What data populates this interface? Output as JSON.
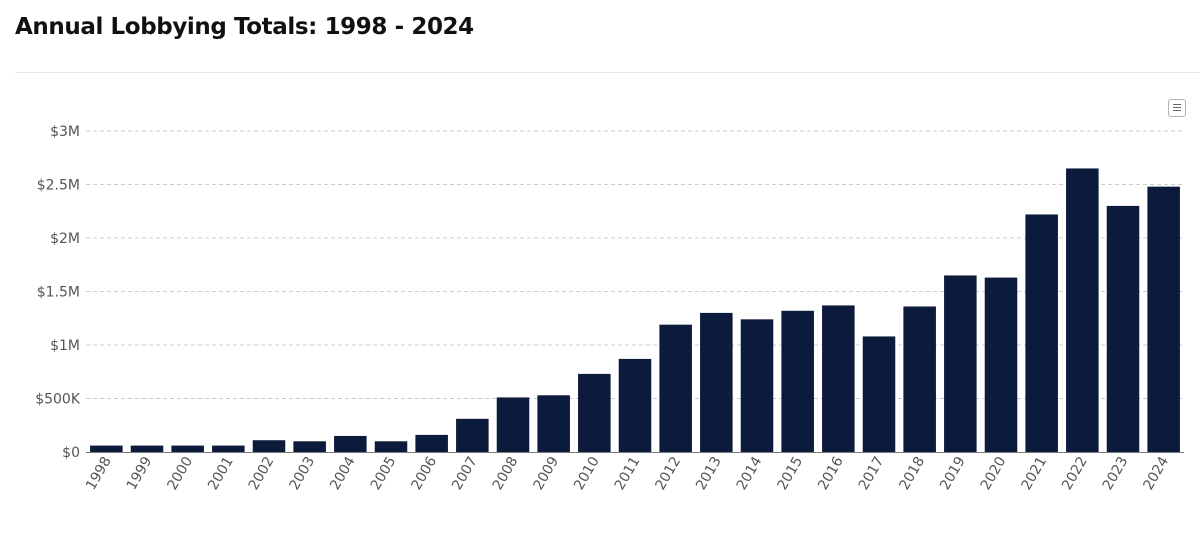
{
  "page": {
    "title": "Annual Lobbying Totals: 1998 - 2024"
  },
  "colors": {
    "bar": "#0c1a3b",
    "grid": "#cccccc",
    "axis": "#777777"
  },
  "chart_data": {
    "type": "bar",
    "title": "Annual Lobbying Totals: 1998 - 2024",
    "xlabel": "",
    "ylabel": "",
    "categories": [
      "1998",
      "1999",
      "2000",
      "2001",
      "2002",
      "2003",
      "2004",
      "2005",
      "2006",
      "2007",
      "2008",
      "2009",
      "2010",
      "2011",
      "2012",
      "2013",
      "2014",
      "2015",
      "2016",
      "2017",
      "2018",
      "2019",
      "2020",
      "2021",
      "2022",
      "2023",
      "2024"
    ],
    "values": [
      60000,
      60000,
      60000,
      60000,
      110000,
      100000,
      150000,
      100000,
      160000,
      310000,
      510000,
      530000,
      730000,
      870000,
      1190000,
      1300000,
      1240000,
      1320000,
      1370000,
      1080000,
      1360000,
      1650000,
      1630000,
      2220000,
      2650000,
      2300000,
      2480000
    ],
    "ylim": [
      0,
      3000000
    ],
    "yticks": [
      0,
      500000,
      1000000,
      1500000,
      2000000,
      2500000,
      3000000
    ],
    "ytick_labels": [
      "$0",
      "$500K",
      "$1M",
      "$1.5M",
      "$2M",
      "$2.5M",
      "$3M"
    ],
    "grid": true,
    "legend": "none"
  }
}
